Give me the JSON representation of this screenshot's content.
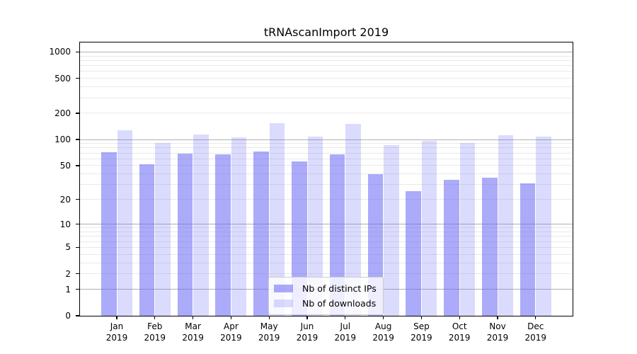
{
  "chart_data": {
    "type": "bar",
    "title": "tRNAscanImport 2019",
    "categories": [
      "Jan",
      "Feb",
      "Mar",
      "Apr",
      "May",
      "Jun",
      "Jul",
      "Aug",
      "Sep",
      "Oct",
      "Nov",
      "Dec"
    ],
    "year_label": "2019",
    "series": [
      {
        "name": "Nb of distinct IPs",
        "values": [
          72,
          52,
          69,
          68,
          73,
          56,
          67,
          40,
          25,
          34,
          36,
          31
        ],
        "color": "rgba(100,100,245,0.54)"
      },
      {
        "name": "Nb of downloads",
        "values": [
          127,
          92,
          115,
          106,
          155,
          108,
          152,
          87,
          96,
          91,
          112,
          108
        ],
        "color": "rgba(100,100,245,0.23)"
      }
    ],
    "yscale": "log10(1+y)",
    "ylim": [
      0,
      1280
    ],
    "yticks": [
      0,
      1,
      2,
      5,
      10,
      20,
      50,
      100,
      200,
      500,
      1000
    ],
    "grid": true,
    "legend_position": "inside-bottom-center",
    "colors": {
      "grid_major": "#b0b0b0",
      "grid_minor": "#e9e9e9",
      "axis": "#000000",
      "text": "#000000",
      "legend_border": "#cccccc"
    }
  }
}
